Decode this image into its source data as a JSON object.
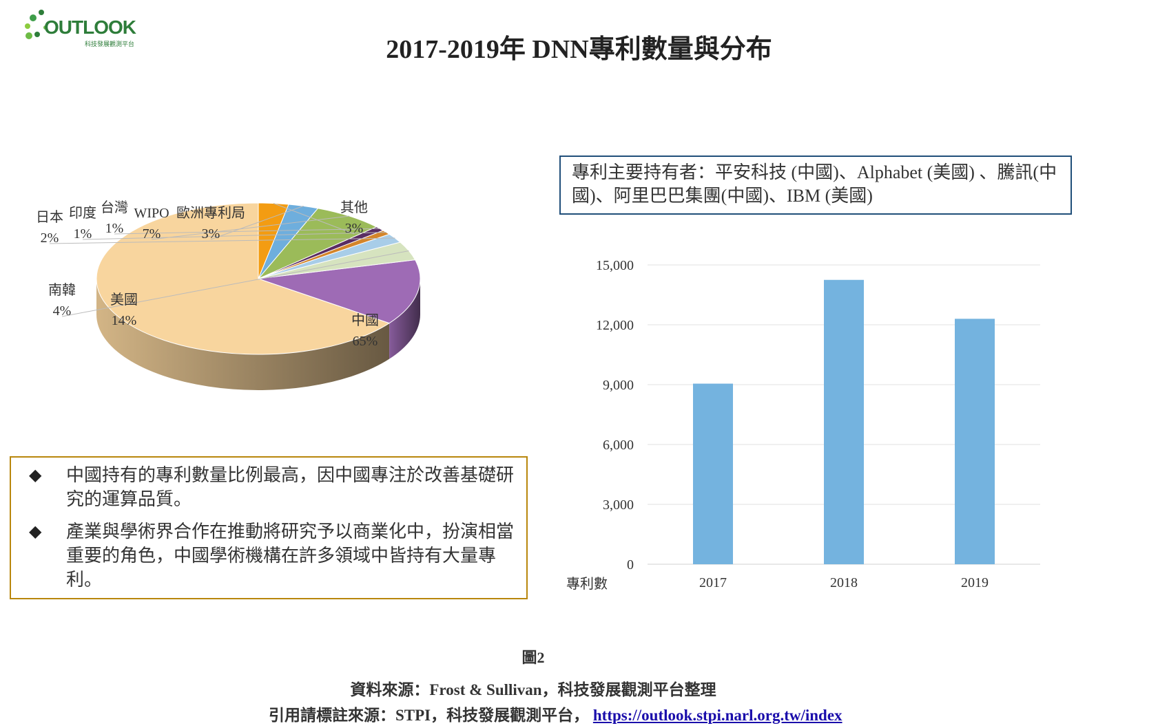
{
  "logo": {
    "brand": "OUTLOOK",
    "subtitle": "科技發展觀測平台"
  },
  "title": "2017-2019年 DNN專利數量與分布",
  "holders_text": "專利主要持有者：平安科技 (中國)、Alphabet (美國) 、騰訊(中國)、阿里巴巴集團(中國)、IBM (美國)",
  "notes": [
    "中國持有的專利數量比例最高，因中國專注於改善基礎研究的運算品質。",
    "產業與學術界合作在推動將研究予以商業化中，扮演相當重要的角色，中國學術機構在許多領域中皆持有大量專利。"
  ],
  "footer": {
    "figure_label": "圖2",
    "source": "資料來源：Frost & Sullivan，科技發展觀測平台整理",
    "cite_prefix": "引用請標註來源：STPI，科技發展觀測平台，",
    "cite_link": "https://outlook.stpi.narl.org.tw/index"
  },
  "chart_data": [
    {
      "type": "pie",
      "style": "3d",
      "labels": [
        "中國",
        "美國",
        "南韓",
        "日本",
        "印度",
        "台灣",
        "WIPO",
        "歐洲專利局",
        "其他"
      ],
      "values": [
        65,
        14,
        4,
        2,
        1,
        1,
        7,
        3,
        3
      ],
      "value_labels": [
        "65%",
        "14%",
        "4%",
        "2%",
        "1%",
        "1%",
        "7%",
        "3%",
        "3%"
      ],
      "colors": [
        "#f8d59e",
        "#9e6bb5",
        "#d6e3bf",
        "#a8cde8",
        "#d4852a",
        "#5a2d62",
        "#9bbb59",
        "#6eaedd",
        "#f39c12"
      ]
    },
    {
      "type": "bar",
      "categories": [
        "2017",
        "2018",
        "2019"
      ],
      "values": [
        9050,
        14250,
        12300
      ],
      "ylim": [
        0,
        15000
      ],
      "yticks": [
        0,
        3000,
        6000,
        9000,
        12000,
        15000
      ],
      "ytick_labels": [
        "0",
        "3,000",
        "6,000",
        "9,000",
        "12,000",
        "15,000"
      ],
      "ylabel": "專利數",
      "color": "#74b3df",
      "grid": true
    }
  ]
}
